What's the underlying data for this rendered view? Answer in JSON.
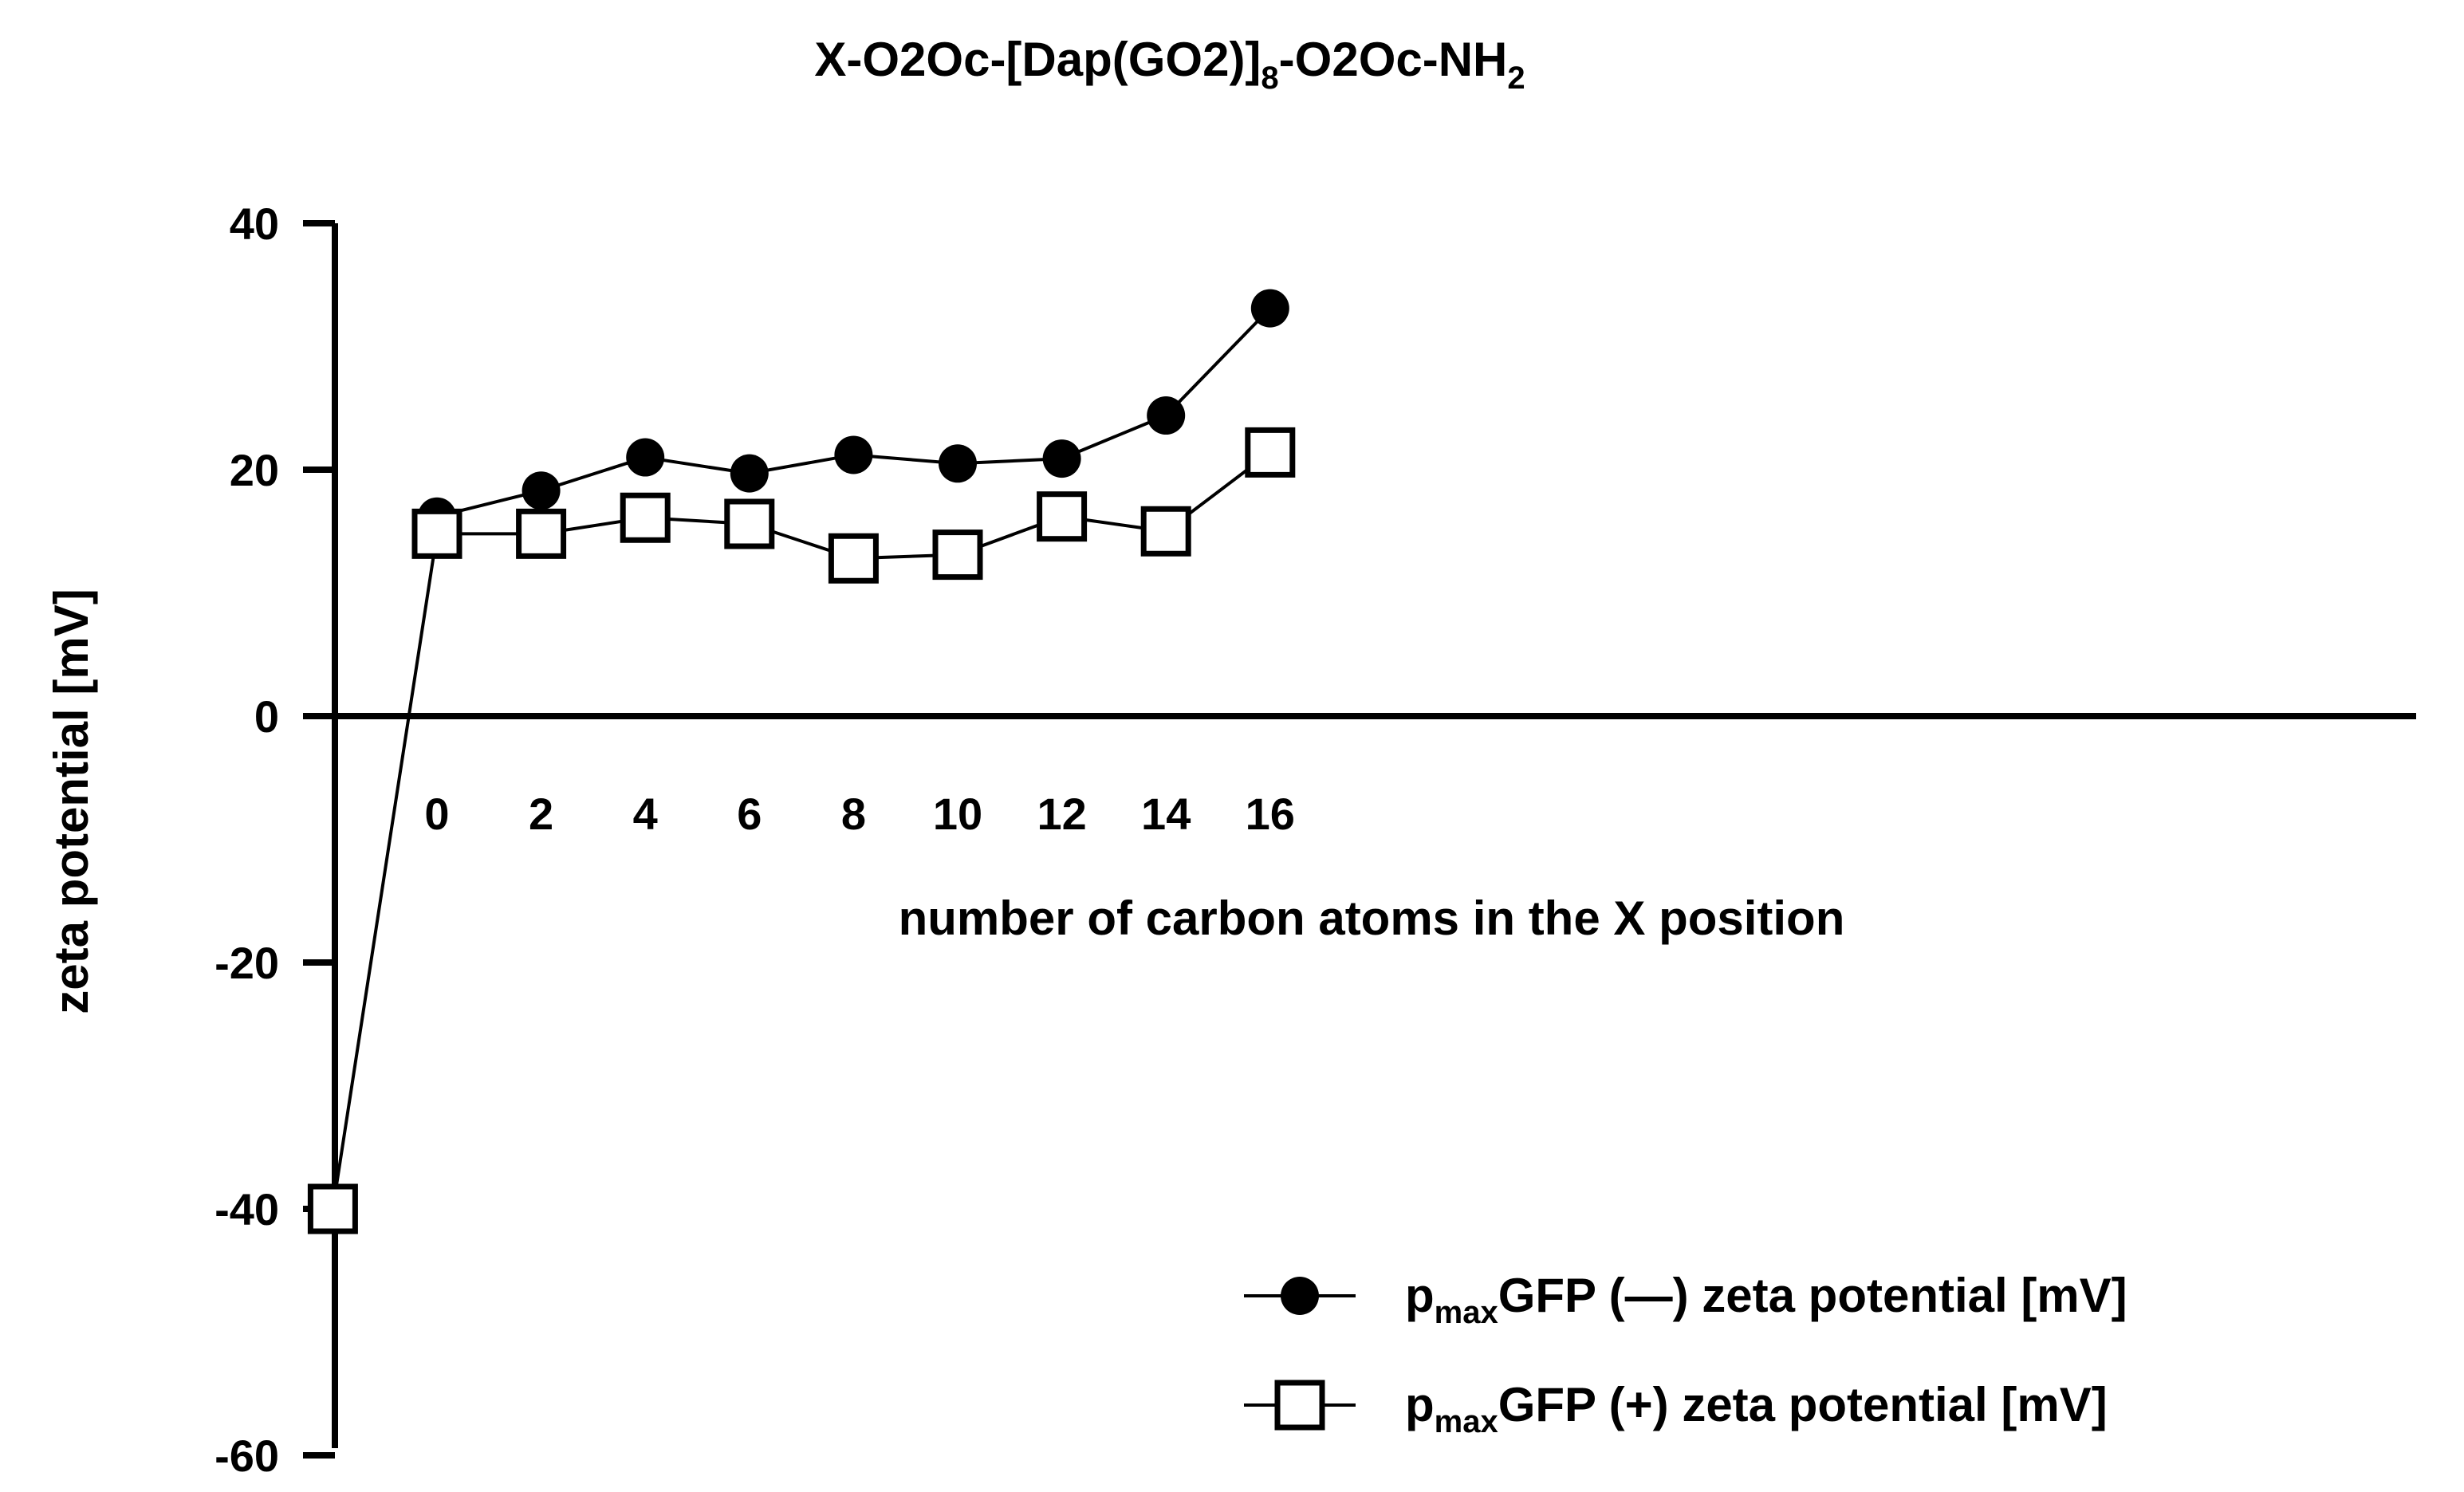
{
  "chart_data": {
    "type": "line",
    "title": {
      "base": "X-O2Oc-[Dap(GO2)]",
      "sub1": "8",
      "mid": "-O2Oc-NH",
      "sub2": "2"
    },
    "xlabel": "number of carbon atoms in the X position",
    "ylabel": "zeta potential  [mV]",
    "ylim": [
      -60,
      40
    ],
    "yticks": [
      40,
      20,
      0,
      -20,
      -40,
      -60
    ],
    "xticks": [
      0,
      2,
      4,
      6,
      8,
      10,
      12,
      14,
      16
    ],
    "x": [
      -2,
      0,
      2,
      4,
      6,
      8,
      10,
      12,
      14,
      16
    ],
    "series": [
      {
        "name": {
          "pre": "p",
          "sub": "max",
          "post": "GFP (—) zeta potential  [mV]"
        },
        "marker": "filled-circle",
        "points": [
          {
            "x": 0,
            "y": 16.2
          },
          {
            "x": 2,
            "y": 18.3
          },
          {
            "x": 4,
            "y": 21.0
          },
          {
            "x": 6,
            "y": 19.7
          },
          {
            "x": 8,
            "y": 21.2
          },
          {
            "x": 10,
            "y": 20.5
          },
          {
            "x": 12,
            "y": 20.9
          },
          {
            "x": 14,
            "y": 24.4
          },
          {
            "x": 16,
            "y": 33.1
          }
        ]
      },
      {
        "name": {
          "pre": "p",
          "sub": "max",
          "post": "GFP (+) zeta potential  [mV]"
        },
        "marker": "open-square",
        "points": [
          {
            "x": -2,
            "y": -40.0
          },
          {
            "x": 0,
            "y": 14.8
          },
          {
            "x": 2,
            "y": 14.8
          },
          {
            "x": 4,
            "y": 16.1
          },
          {
            "x": 6,
            "y": 15.6
          },
          {
            "x": 8,
            "y": 12.8
          },
          {
            "x": 10,
            "y": 13.1
          },
          {
            "x": 12,
            "y": 16.2
          },
          {
            "x": 14,
            "y": 15.0
          },
          {
            "x": 16,
            "y": 21.4
          }
        ]
      }
    ],
    "legend_position": "bottom-right",
    "colors": {
      "line": "#000000",
      "background": "#ffffff"
    }
  }
}
